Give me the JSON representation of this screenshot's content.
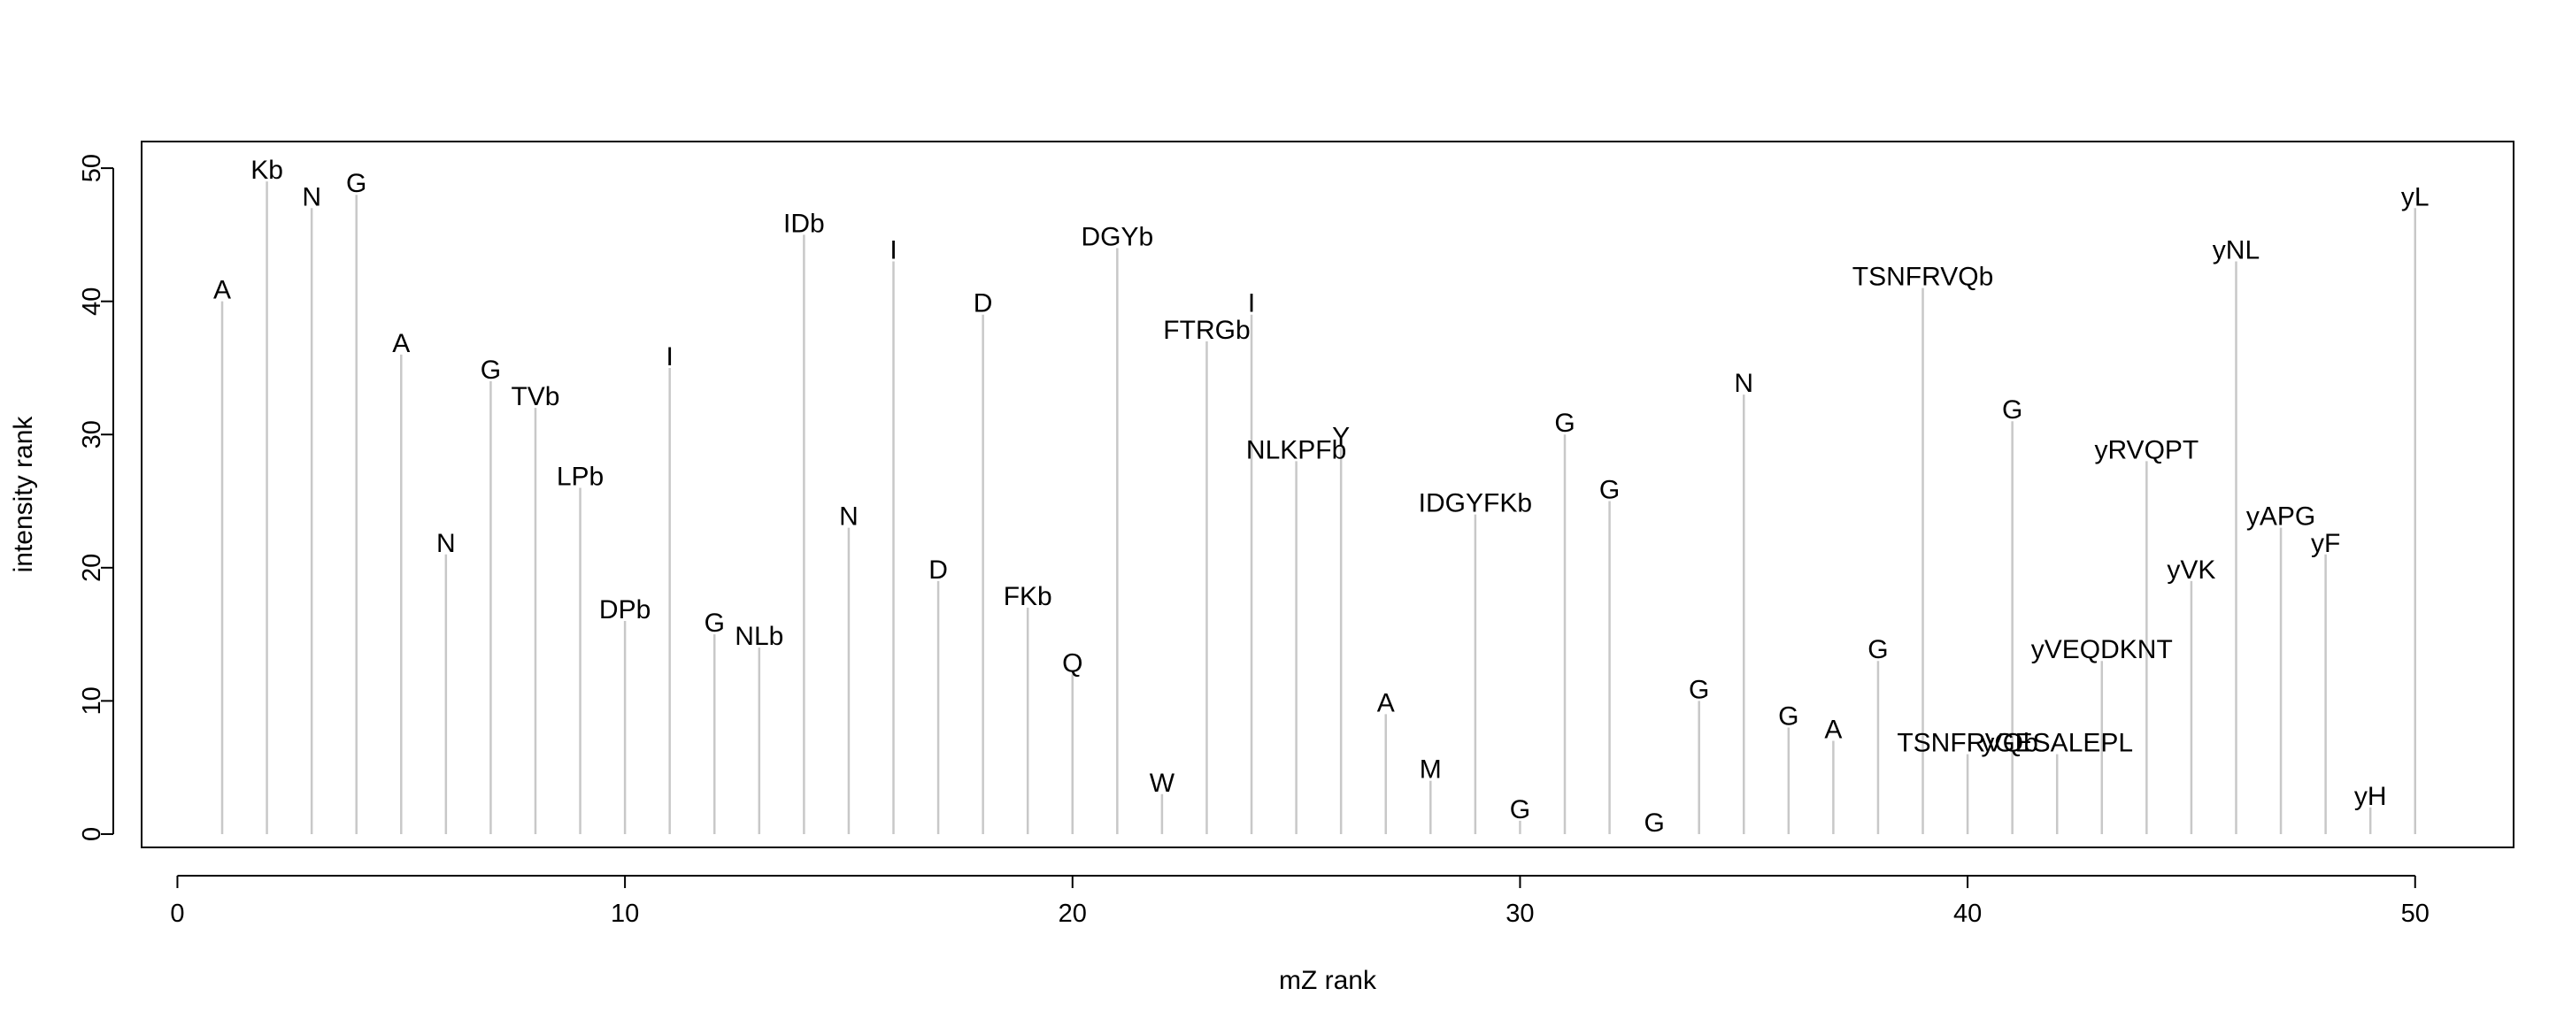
{
  "chart_data": {
    "type": "bar",
    "xlabel": "mZ rank",
    "ylabel": "intensity rank",
    "xlim": [
      -0.8,
      52.2
    ],
    "ylim": [
      -1,
      52
    ],
    "xticks": [
      0,
      10,
      20,
      30,
      40,
      50
    ],
    "yticks": [
      0,
      10,
      20,
      30,
      40,
      50
    ],
    "grid": false,
    "legend": "none",
    "colors": {
      "line": "#c8c8c8",
      "axis": "#000000",
      "text": "#000000"
    },
    "points": [
      {
        "x": 1,
        "y": 40,
        "label": "A"
      },
      {
        "x": 2,
        "y": 49,
        "label": "Kb"
      },
      {
        "x": 3,
        "y": 47,
        "label": "N"
      },
      {
        "x": 4,
        "y": 48,
        "label": "G"
      },
      {
        "x": 5,
        "y": 36,
        "label": "A"
      },
      {
        "x": 6,
        "y": 21,
        "label": "N"
      },
      {
        "x": 7,
        "y": 34,
        "label": "G"
      },
      {
        "x": 8,
        "y": 32,
        "label": "TVb"
      },
      {
        "x": 9,
        "y": 26,
        "label": "LPb"
      },
      {
        "x": 10,
        "y": 16,
        "label": "DPb"
      },
      {
        "x": 11,
        "y": 35,
        "label": "I"
      },
      {
        "x": 12,
        "y": 15,
        "label": "G"
      },
      {
        "x": 13,
        "y": 14,
        "label": "NLb"
      },
      {
        "x": 14,
        "y": 45,
        "label": "IDb"
      },
      {
        "x": 15,
        "y": 23,
        "label": "N"
      },
      {
        "x": 16,
        "y": 43,
        "label": "I"
      },
      {
        "x": 17,
        "y": 19,
        "label": "D"
      },
      {
        "x": 18,
        "y": 39,
        "label": "D"
      },
      {
        "x": 19,
        "y": 17,
        "label": "FKb"
      },
      {
        "x": 20,
        "y": 12,
        "label": "Q"
      },
      {
        "x": 21,
        "y": 44,
        "label": "DGYb"
      },
      {
        "x": 22,
        "y": 3,
        "label": "W"
      },
      {
        "x": 23,
        "y": 37,
        "label": "FTRGb"
      },
      {
        "x": 24,
        "y": 39,
        "label": "I"
      },
      {
        "x": 25,
        "y": 28,
        "label": "NLKPFb"
      },
      {
        "x": 26,
        "y": 29,
        "label": "Y"
      },
      {
        "x": 27,
        "y": 9,
        "label": "A"
      },
      {
        "x": 28,
        "y": 4,
        "label": "M"
      },
      {
        "x": 29,
        "y": 24,
        "label": "IDGYFKb"
      },
      {
        "x": 30,
        "y": 1,
        "label": "G"
      },
      {
        "x": 31,
        "y": 30,
        "label": "G"
      },
      {
        "x": 32,
        "y": 25,
        "label": "G"
      },
      {
        "x": 33,
        "y": 0,
        "label": "G"
      },
      {
        "x": 34,
        "y": 10,
        "label": "G"
      },
      {
        "x": 35,
        "y": 33,
        "label": "N"
      },
      {
        "x": 36,
        "y": 8,
        "label": "G"
      },
      {
        "x": 37,
        "y": 7,
        "label": "A"
      },
      {
        "x": 38,
        "y": 13,
        "label": "G"
      },
      {
        "x": 39,
        "y": 41,
        "label": "TSNFRVQb"
      },
      {
        "x": 40,
        "y": 6,
        "label": "TSNFRVQb"
      },
      {
        "x": 41,
        "y": 31,
        "label": "G"
      },
      {
        "x": 42,
        "y": 6,
        "label": "yGESALEPL"
      },
      {
        "x": 43,
        "y": 13,
        "label": "yVEQDKNT"
      },
      {
        "x": 44,
        "y": 28,
        "label": "yRVQPT"
      },
      {
        "x": 45,
        "y": 19,
        "label": "yVK"
      },
      {
        "x": 46,
        "y": 43,
        "label": "yNL"
      },
      {
        "x": 47,
        "y": 23,
        "label": "yAPG"
      },
      {
        "x": 48,
        "y": 21,
        "label": "yF"
      },
      {
        "x": 49,
        "y": 2,
        "label": "yH"
      },
      {
        "x": 50,
        "y": 47,
        "label": "yL"
      }
    ]
  }
}
